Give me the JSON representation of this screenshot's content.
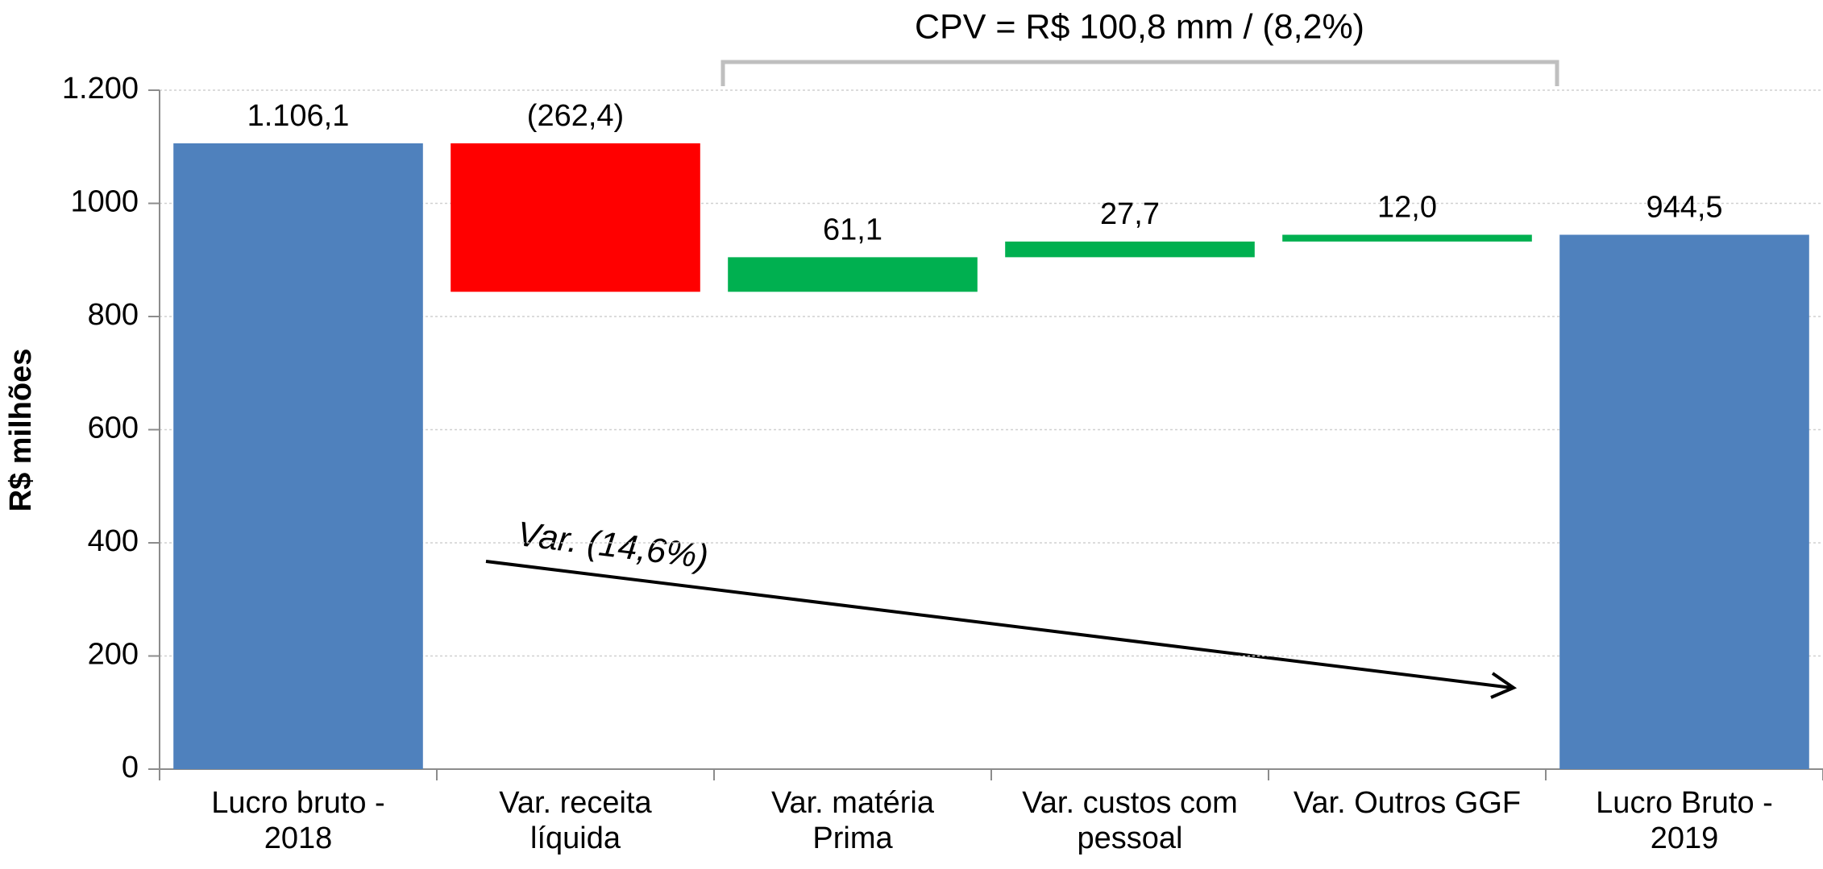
{
  "chart_data": {
    "type": "waterfall",
    "y_label": "R$ milhões",
    "annotations": [
      "CPV = R$ 100,8 mm / (8,2%)",
      "Var. (14,6%)"
    ],
    "categories": [
      "Lucro bruto -\n2018",
      "Var. receita\nlíquida",
      "Var. matéria\nPrima",
      "Var. custos com\npessoal",
      "Var. Outros GGF",
      "Lucro Bruto -\n2019"
    ],
    "values": [
      1106.1,
      -262.4,
      61.1,
      27.7,
      12.0,
      944.5
    ],
    "value_labels": [
      "1.106,1",
      "(262,4)",
      "61,1",
      "27,7",
      "12,0",
      "944,5"
    ],
    "measure": [
      "absolute",
      "relative",
      "relative",
      "relative",
      "relative",
      "absolute"
    ],
    "colors": [
      "#4f81bd",
      "#ff0000",
      "#00b050",
      "#00b050",
      "#00b050",
      "#4f81bd"
    ],
    "ylim": [
      0,
      1200
    ],
    "yticks": [
      0,
      200,
      400,
      600,
      800,
      1000,
      {
        "value": 1200,
        "label": "1.200"
      }
    ],
    "grid": true
  }
}
